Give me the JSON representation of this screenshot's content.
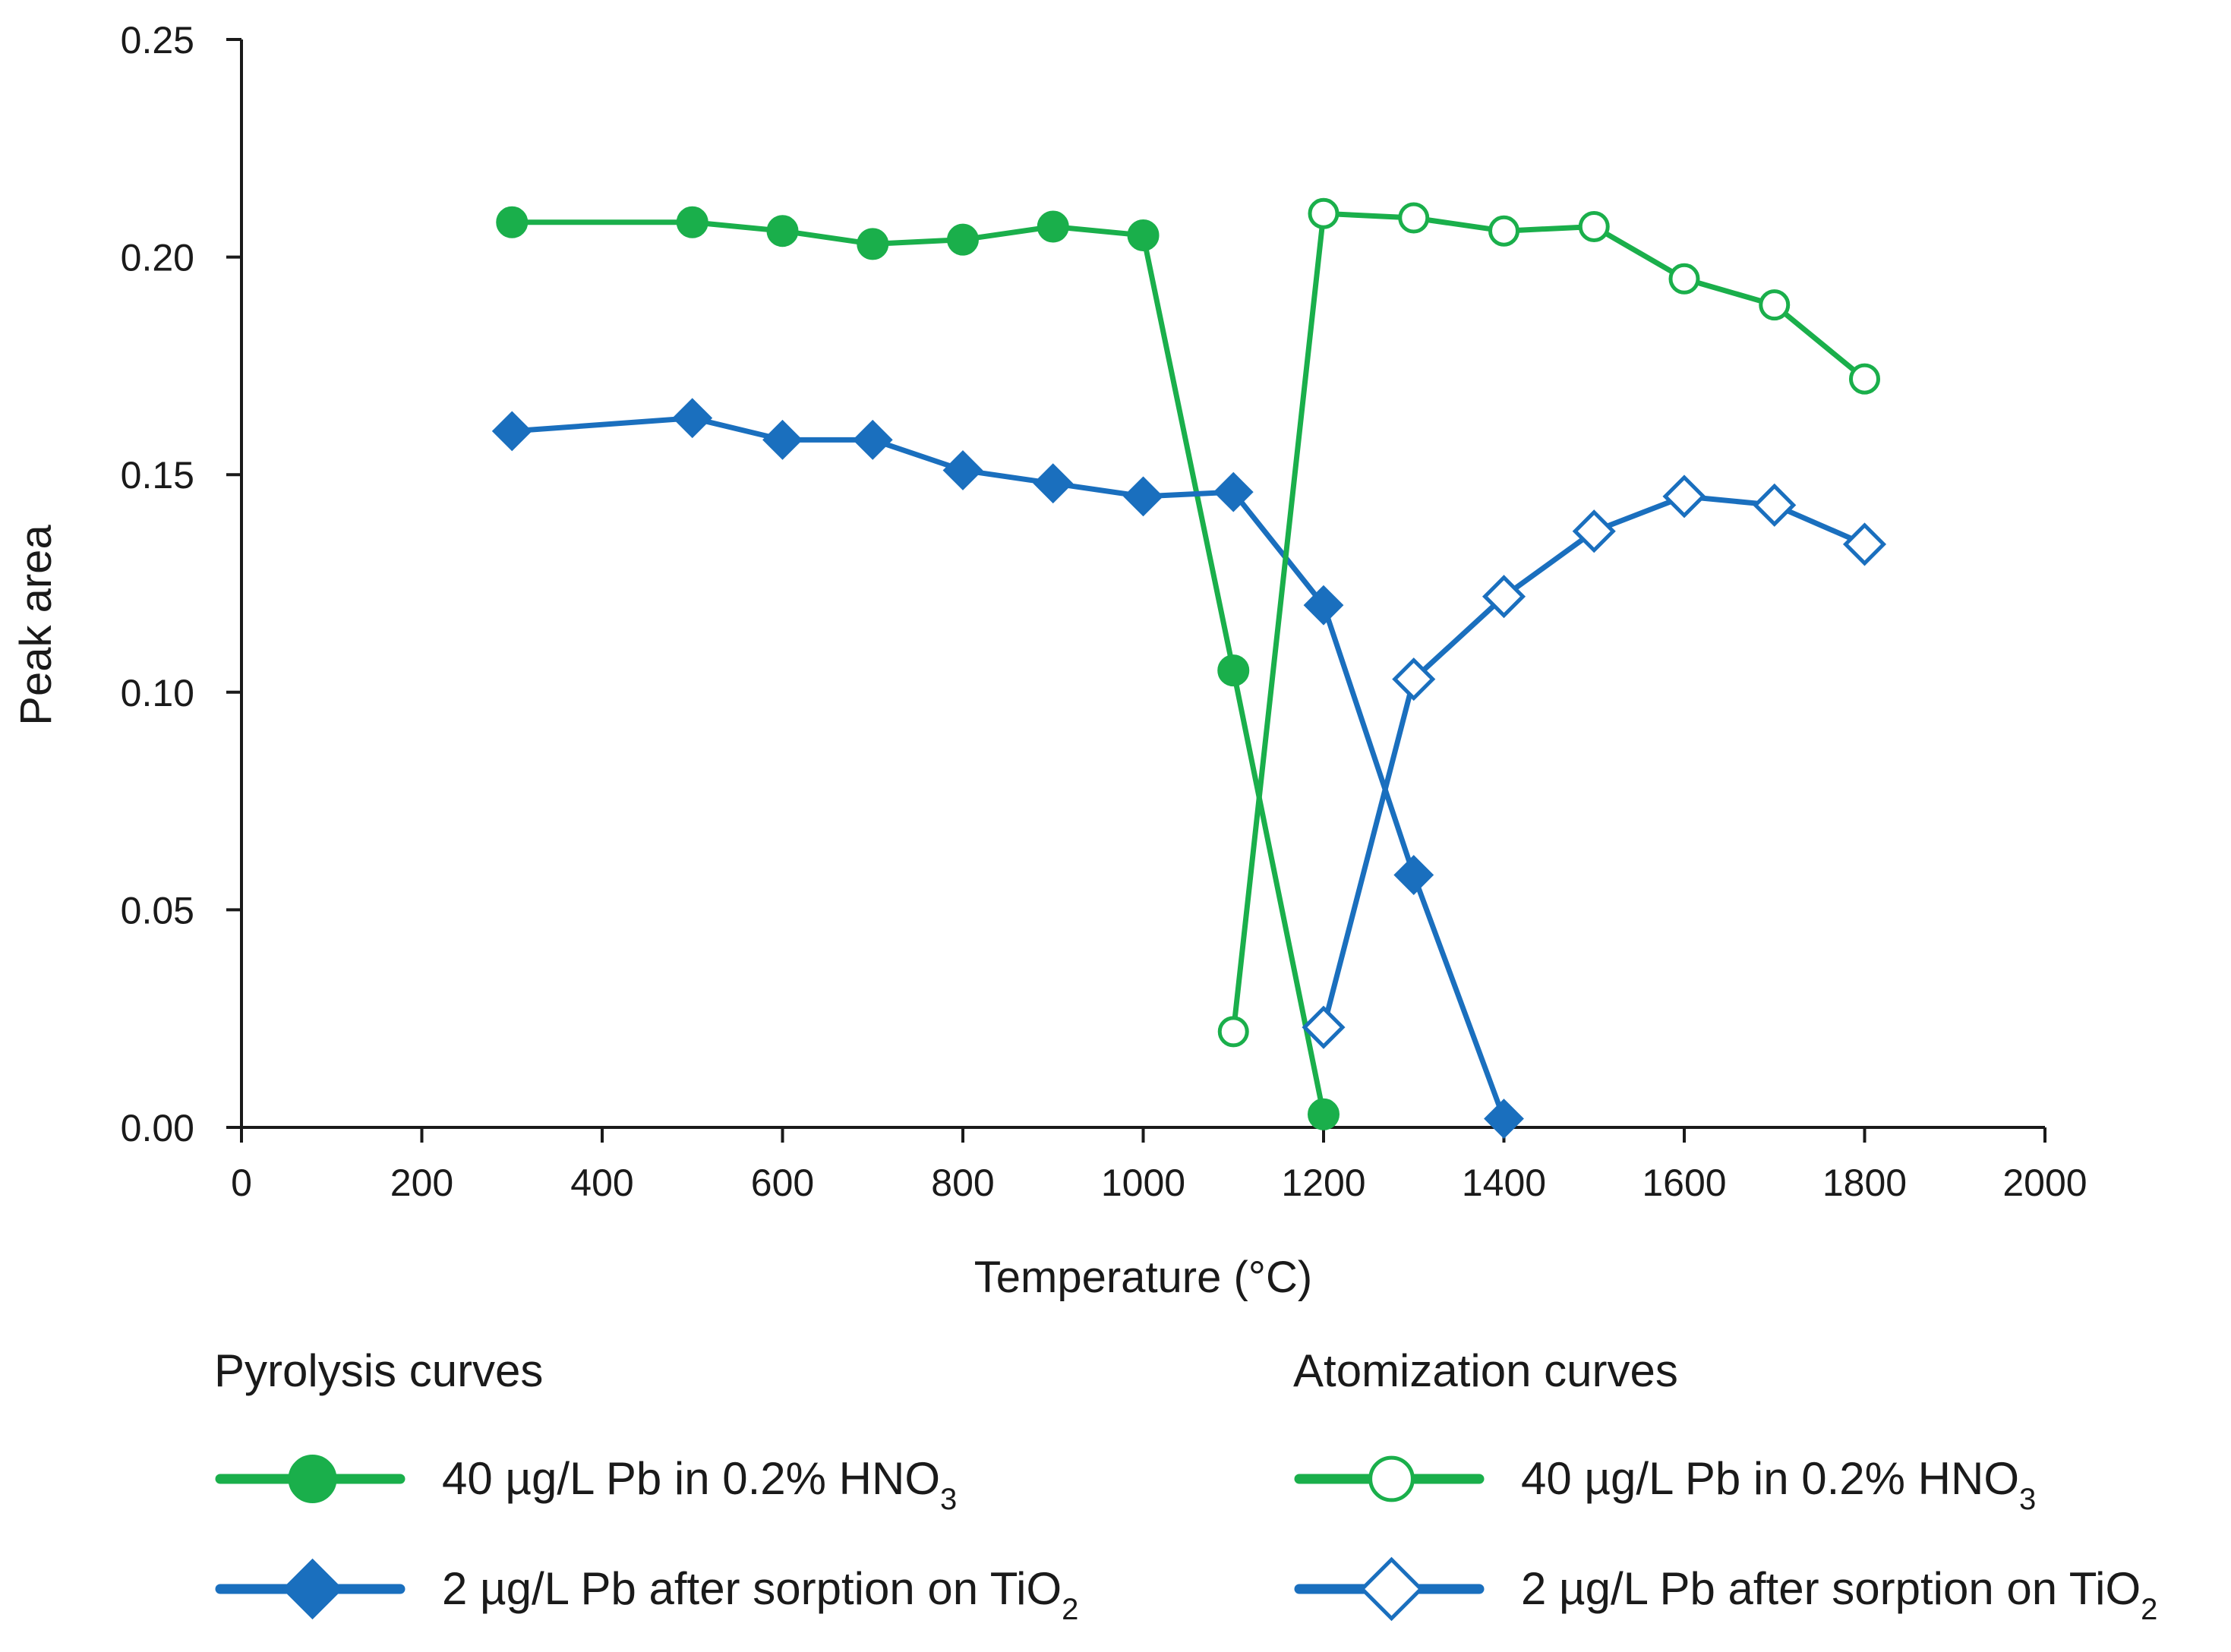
{
  "chart_data": {
    "type": "line",
    "title": "",
    "xlabel": "Temperature (°C)",
    "ylabel": "Peak area",
    "xlim": [
      0,
      2000
    ],
    "ylim": [
      0,
      0.25
    ],
    "xticks": [
      0,
      200,
      400,
      600,
      800,
      1000,
      1200,
      1400,
      1600,
      1800,
      2000
    ],
    "xtick_labels": [
      "0",
      "200",
      "400",
      "600",
      "800",
      "1000",
      "1200",
      "1400",
      "1600",
      "1800",
      "2000"
    ],
    "yticks": [
      0,
      0.05,
      0.1,
      0.15,
      0.2,
      0.25
    ],
    "ytick_labels": [
      "0.00",
      "0.05",
      "0.10",
      "0.15",
      "0.20",
      "0.25"
    ],
    "grid": false,
    "colors": {
      "green": "#1aaf4b",
      "blue": "#1a6fbe"
    },
    "legend": {
      "placement": "bottom",
      "groups": [
        {
          "heading": "Pyrolysis curves",
          "entries": [
            {
              "series": 0,
              "text": "40 µg/L Pb in 0.2% HNO",
              "subscript": "3"
            },
            {
              "series": 1,
              "text": "2 µg/L Pb after sorption on TiO",
              "subscript": "2"
            }
          ]
        },
        {
          "heading": "Atomization curves",
          "entries": [
            {
              "series": 2,
              "text": "40 µg/L Pb in 0.2% HNO",
              "subscript": "3"
            },
            {
              "series": 3,
              "text": "2 µg/L Pb after sorption on TiO",
              "subscript": "2"
            }
          ]
        }
      ]
    },
    "series": [
      {
        "name": "Pyrolysis curves: 40 µg/L Pb in 0.2% HNO3",
        "color": "green",
        "marker": "circle",
        "filled": true,
        "x": [
          300,
          500,
          600,
          700,
          800,
          900,
          1000,
          1100,
          1200
        ],
        "y": [
          0.208,
          0.208,
          0.206,
          0.203,
          0.204,
          0.207,
          0.205,
          0.105,
          0.003
        ]
      },
      {
        "name": "Pyrolysis curves: 2 µg/L Pb after sorption on TiO2",
        "color": "blue",
        "marker": "diamond",
        "filled": true,
        "x": [
          300,
          500,
          600,
          700,
          800,
          900,
          1000,
          1100,
          1200,
          1300,
          1400
        ],
        "y": [
          0.16,
          0.163,
          0.158,
          0.158,
          0.151,
          0.148,
          0.145,
          0.146,
          0.12,
          0.058,
          0.002
        ]
      },
      {
        "name": "Atomization curves: 40 µg/L Pb in 0.2% HNO3",
        "color": "green",
        "marker": "circle",
        "filled": false,
        "x": [
          1100,
          1200,
          1300,
          1400,
          1500,
          1600,
          1700,
          1800
        ],
        "y": [
          0.022,
          0.21,
          0.209,
          0.206,
          0.207,
          0.195,
          0.189,
          0.172
        ]
      },
      {
        "name": "Atomization curves: 2 µg/L Pb after sorption on TiO2",
        "color": "blue",
        "marker": "diamond",
        "filled": false,
        "x": [
          1200,
          1300,
          1400,
          1500,
          1600,
          1700,
          1800
        ],
        "y": [
          0.023,
          0.103,
          0.122,
          0.137,
          0.145,
          0.143,
          0.134
        ]
      }
    ]
  }
}
